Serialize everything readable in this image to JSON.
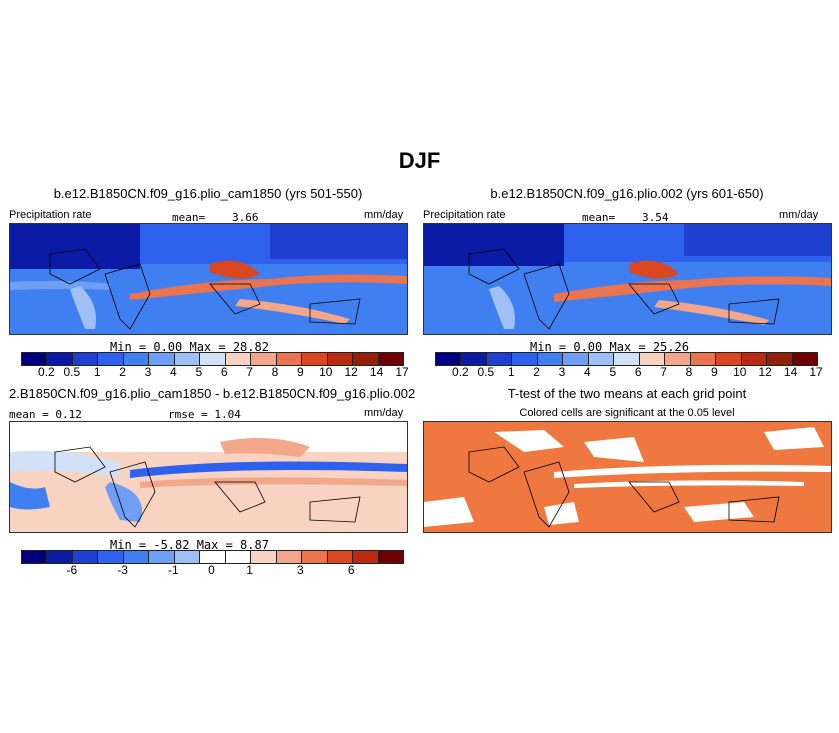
{
  "title": "DJF",
  "colors": [
    "#00007f",
    "#0b1ba6",
    "#1f3fd1",
    "#2e62ee",
    "#3f7ff0",
    "#6e9ff4",
    "#9fc0f6",
    "#d2e1f8",
    "#f9d3c2",
    "#f3a78a",
    "#e9744f",
    "#db4720",
    "#bb2a10",
    "#932008",
    "#6d0000"
  ],
  "diff_colors": [
    "#00007f",
    "#0b1ba6",
    "#1f3fd1",
    "#2e62ee",
    "#3f7ff0",
    "#6e9ff4",
    "#9fc0f6",
    "#ffffff",
    "#ffffff",
    "#f9d3c2",
    "#f3a78a",
    "#e9744f",
    "#db4720",
    "#bb2a10",
    "#6d0000"
  ],
  "ttest_color": "#ee7840",
  "panels": {
    "p1": {
      "title": "b.e12.B1850CN.f09_g16.plio_cam1850 (yrs 501-550)",
      "var": "Precipitation rate",
      "mean_label": "mean=",
      "mean_value": "3.66",
      "units": "mm/day",
      "minmax": "Min =    0.00  Max =   28.82",
      "ticks": [
        "0.2",
        "0.5",
        "1",
        "2",
        "3",
        "4",
        "5",
        "6",
        "7",
        "8",
        "9",
        "10",
        "12",
        "14",
        "17"
      ]
    },
    "p2": {
      "title": "b.e12.B1850CN.f09_g16.plio.002 (yrs 601-650)",
      "var": "Precipitation rate",
      "mean_label": "mean=",
      "mean_value": "3.54",
      "units": "mm/day",
      "minmax": "Min =    0.00  Max =   25.26",
      "ticks": [
        "0.2",
        "0.5",
        "1",
        "2",
        "3",
        "4",
        "5",
        "6",
        "7",
        "8",
        "9",
        "10",
        "12",
        "14",
        "17"
      ]
    },
    "p3": {
      "title": "2.B1850CN.f09_g16.plio_cam1850 - b.e12.B1850CN.f09_g16.plio.002",
      "mean_text": "mean =   0.12",
      "rmse_text": "rmse =   1.04",
      "units": "mm/day",
      "minmax": "Min =   -5.82  Max =    8.87",
      "ticks": [
        "-6",
        "-3",
        "-1",
        "0",
        "1",
        "3",
        "6"
      ]
    },
    "p4": {
      "title": "T-test of the two means at each grid point",
      "subtitle": "Colored cells are significant at the 0.05 level"
    }
  }
}
